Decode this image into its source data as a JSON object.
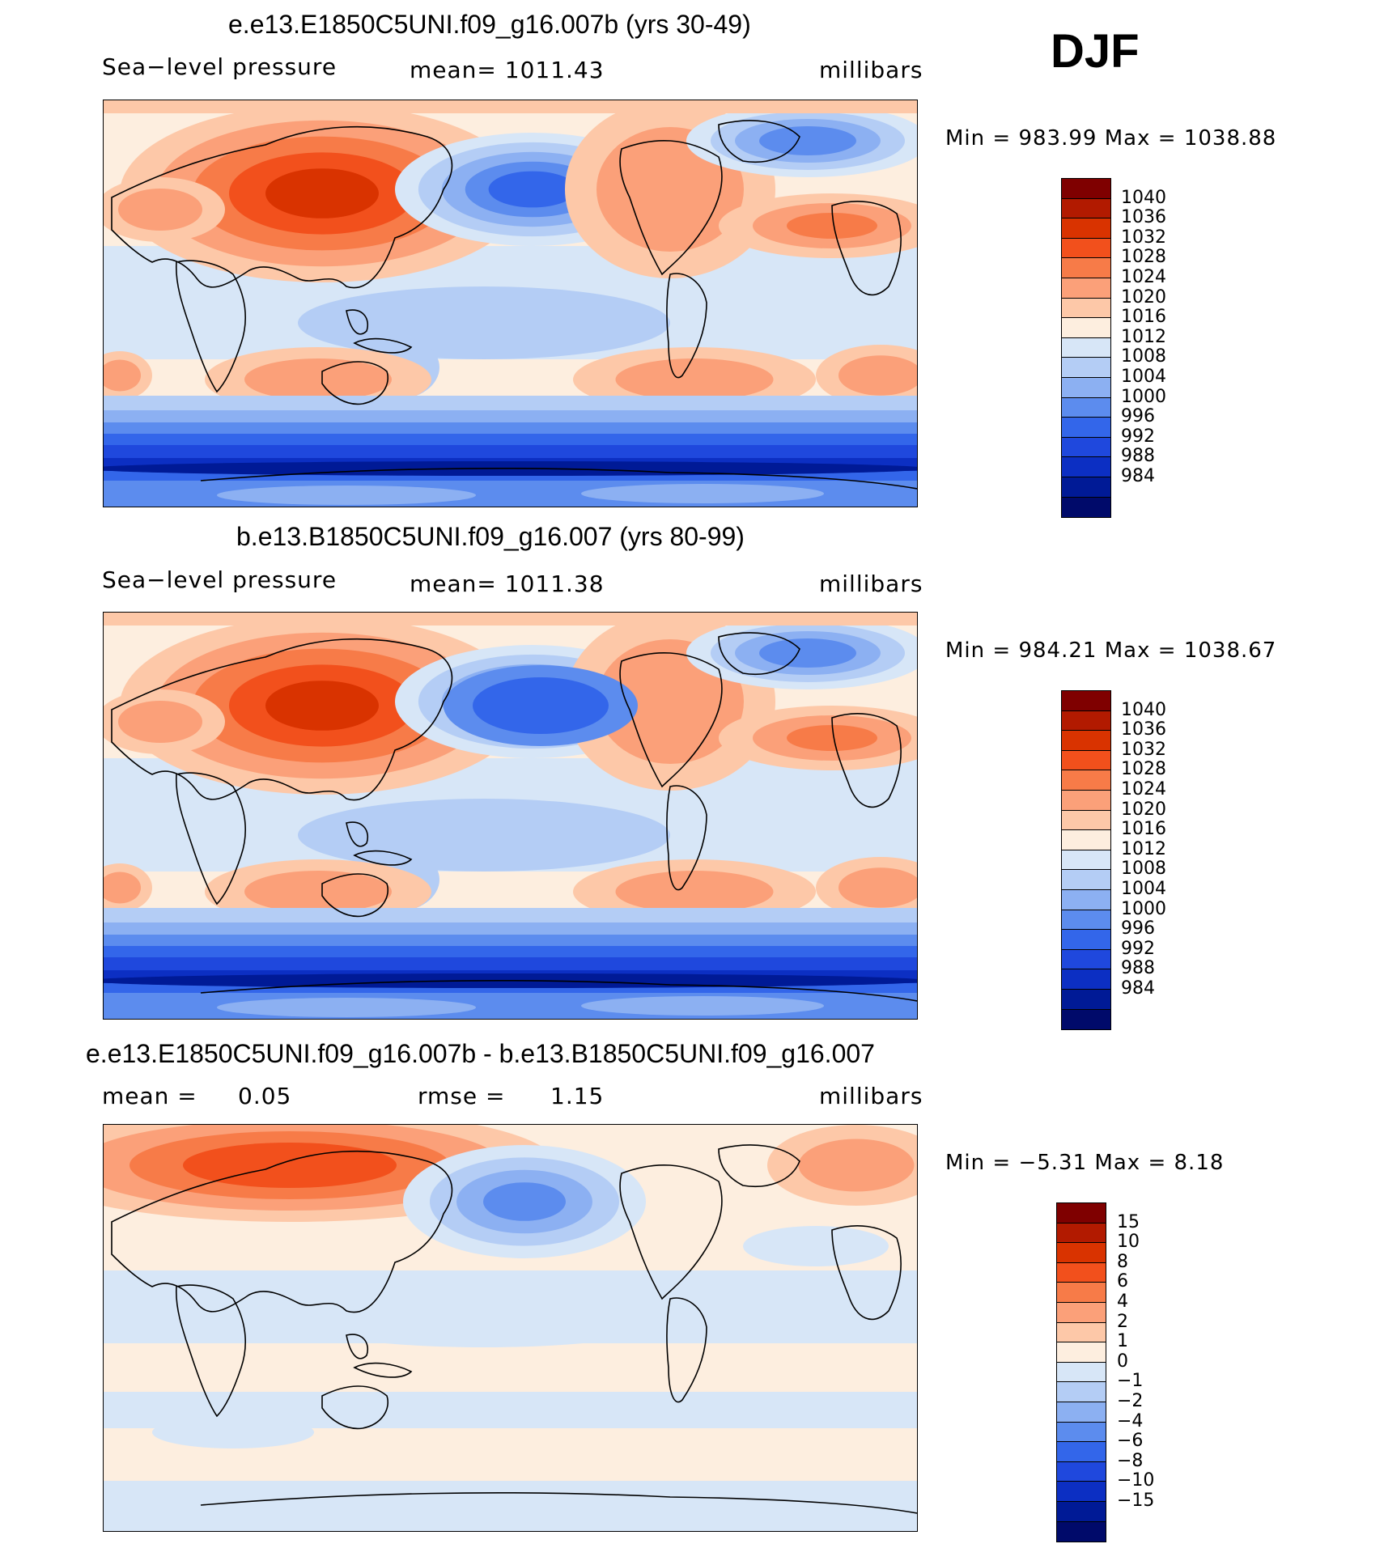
{
  "season": "DJF",
  "panels": [
    {
      "title": "e.e13.E1850C5UNI.f09_g16.007b (yrs 30-49)",
      "left_label": "Sea−level pressure",
      "center_label": "mean=  1011.43",
      "right_label": "millibars",
      "min_label": "Min",
      "min_value": "983.99",
      "max_label": "Max",
      "max_value": "1038.88",
      "kind": "absolute"
    },
    {
      "title": "b.e13.B1850C5UNI.f09_g16.007 (yrs 80-99)",
      "left_label": "Sea−level pressure",
      "center_label": "mean=  1011.38",
      "right_label": "millibars",
      "min_label": "Min",
      "min_value": "984.21",
      "max_label": "Max",
      "max_value": "1038.67",
      "kind": "absolute"
    },
    {
      "title": "e.e13.E1850C5UNI.f09_g16.007b - b.e13.B1850C5UNI.f09_g16.007",
      "left_label": "mean =",
      "left_value": "0.05",
      "center_label": "rmse =",
      "center_value": "1.15",
      "right_label": "millibars",
      "min_label": "Min",
      "min_value": "−5.31",
      "max_label": "Max",
      "max_value": "8.18",
      "kind": "difference"
    }
  ],
  "colorbar_abs": {
    "labels": [
      "1040",
      "1036",
      "1032",
      "1028",
      "1024",
      "1020",
      "1016",
      "1012",
      "1008",
      "1004",
      "1000",
      "996",
      "992",
      "988",
      "984"
    ],
    "colors": [
      "#7f0000",
      "#b21a00",
      "#d93300",
      "#f2501c",
      "#f77b48",
      "#fba079",
      "#fdc8a8",
      "#fdeedf",
      "#d7e6f7",
      "#b4cdf5",
      "#8cb0f2",
      "#5c8cee",
      "#3366ea",
      "#1f48dd",
      "#0c2fc3",
      "#001a96",
      "#000a6a"
    ]
  },
  "colorbar_diff": {
    "labels": [
      "15",
      "10",
      "8",
      "6",
      "4",
      "2",
      "1",
      "0",
      "−1",
      "−2",
      "−4",
      "−6",
      "−8",
      "−10",
      "−15"
    ],
    "colors": [
      "#7f0000",
      "#b21a00",
      "#d93300",
      "#f2501c",
      "#f77b48",
      "#fba079",
      "#fdc8a8",
      "#fdeedf",
      "#d7e6f7",
      "#b4cdf5",
      "#8cb0f2",
      "#5c8cee",
      "#3366ea",
      "#1f48dd",
      "#0c2fc3",
      "#001a96",
      "#000a6a"
    ]
  },
  "palette": {
    "land_outline": "#000000"
  }
}
